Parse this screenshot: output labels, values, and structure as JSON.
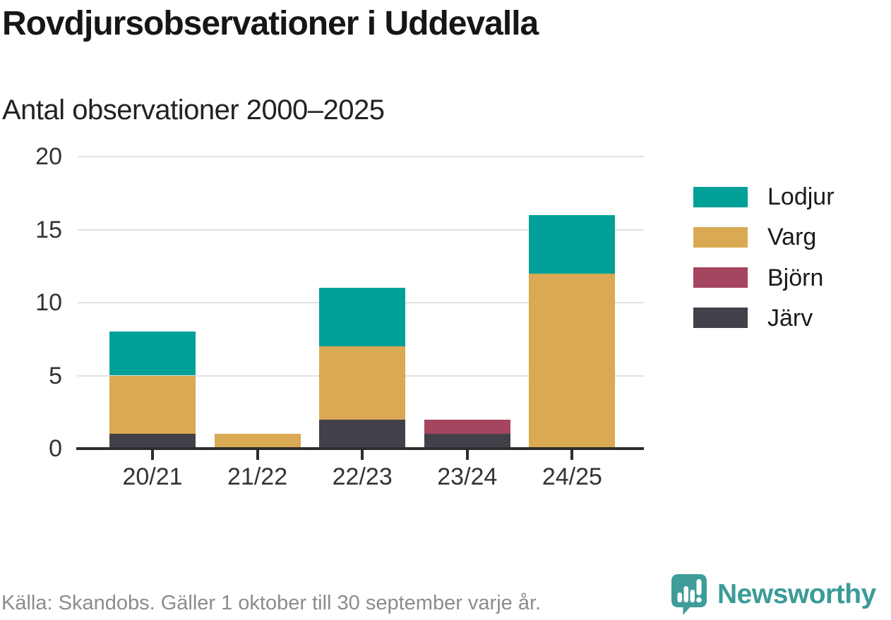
{
  "title": "Rovdjursobservationer i Uddevalla",
  "subtitle": "Antal observationer 2000–2025",
  "footer": {
    "source": "Källa: Skandobs. Gäller 1 oktober till 30 september varje år.",
    "brand": "Newsworthy"
  },
  "icons": {
    "logo": "newsworthy-speech-bubble-bar-chart-icon"
  },
  "colors": {
    "lodjur": "#00A098",
    "varg": "#D9A953",
    "bjorn": "#A54560",
    "jarv": "#434049",
    "grid": "#E2E2E2",
    "axis": "#2D2D2D",
    "tick_label": "#333333",
    "footer_text": "#8C8C8C",
    "brand_teal": "#3A9B98"
  },
  "chart_data": {
    "type": "bar",
    "stacked": true,
    "title": "Rovdjursobservationer i Uddevalla",
    "subtitle": "Antal observationer 2000–2025",
    "categories": [
      "20/21",
      "21/22",
      "22/23",
      "23/24",
      "24/25"
    ],
    "series": [
      {
        "name": "Järv",
        "color_key": "jarv",
        "values": [
          1,
          0,
          2,
          1,
          0
        ]
      },
      {
        "name": "Björn",
        "color_key": "bjorn",
        "values": [
          0,
          0,
          0,
          1,
          0
        ]
      },
      {
        "name": "Varg",
        "color_key": "varg",
        "values": [
          4,
          1,
          5,
          0,
          12
        ]
      },
      {
        "name": "Lodjur",
        "color_key": "lodjur",
        "values": [
          3,
          0,
          4,
          0,
          4
        ]
      }
    ],
    "stack_order_bottom_to_top": [
      "Järv",
      "Björn",
      "Varg",
      "Lodjur"
    ],
    "totals": [
      8,
      1,
      11,
      2,
      16
    ],
    "legend": [
      "Lodjur",
      "Varg",
      "Björn",
      "Järv"
    ],
    "legend_position": "right",
    "y_ticks": [
      0,
      5,
      10,
      15,
      20
    ],
    "ylim": [
      0,
      20
    ],
    "xlabel": "",
    "ylabel": "",
    "grid": true
  }
}
